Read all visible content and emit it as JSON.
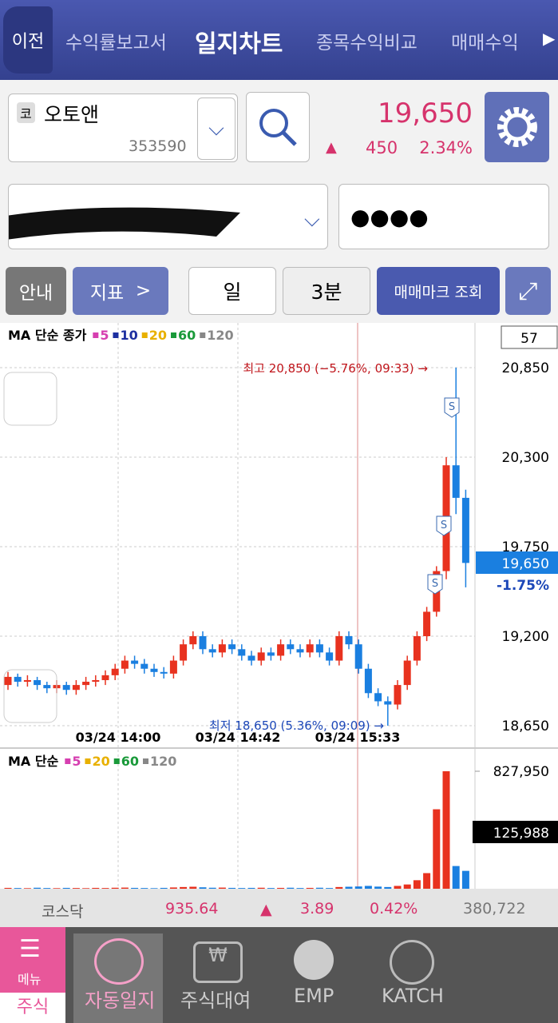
{
  "header": {
    "back": "이전",
    "tabs": [
      "수익률보고서",
      "일지차트",
      "종목수익비교",
      "매매수익"
    ]
  },
  "stock": {
    "badge": "코",
    "name": "오토앤",
    "code": "353590",
    "price": "19,650",
    "change": "450",
    "change_pct": "2.34%"
  },
  "account": {
    "password": "●●●●"
  },
  "toolbar": {
    "guide": "안내",
    "indicator": "지표",
    "period": "일",
    "interval": "3분",
    "mark_query": "매매마크 조회"
  },
  "price_chart": {
    "type": "candlestick",
    "legend": "MA 단순 종가",
    "ma": [
      {
        "name": "5",
        "color": "#d63fb0"
      },
      {
        "name": "10",
        "color": "#1d2fa0"
      },
      {
        "name": "20",
        "color": "#e8b000"
      },
      {
        "name": "60",
        "color": "#1a9a3a"
      },
      {
        "name": "120",
        "color": "#888888"
      }
    ],
    "count": "57",
    "high_note": "최고 20,850 (−5.76%, 09:33) →",
    "low_note": "최저 18,650 (5.36%, 09:09) →",
    "current": "19,650",
    "current_pct": "-1.75%",
    "x_labels": [
      "03/24 14:00",
      "03/24 14:42",
      "03/24 15:33"
    ],
    "ylim": [
      18650,
      20850
    ],
    "yticks": [
      {
        "value": 18650,
        "label": "18,650"
      },
      {
        "value": 19200,
        "label": "19,200"
      },
      {
        "value": 19750,
        "label": "19,750"
      },
      {
        "value": 20300,
        "label": "20,300"
      },
      {
        "value": 20850,
        "label": "20,850"
      }
    ],
    "open": [
      18900,
      18950,
      18920,
      18930,
      18900,
      18880,
      18900,
      18870,
      18900,
      18920,
      18930,
      18960,
      19000,
      19050,
      19030,
      19000,
      18980,
      18970,
      19050,
      19150,
      19200,
      19120,
      19100,
      19150,
      19120,
      19080,
      19050,
      19100,
      19080,
      19150,
      19120,
      19100,
      19150,
      19100,
      19050,
      19200,
      19150,
      19000,
      18850,
      18800,
      18780,
      18900,
      19050,
      19200,
      19350,
      19600,
      20250,
      20050
    ],
    "close": [
      18950,
      18920,
      18930,
      18900,
      18880,
      18900,
      18870,
      18900,
      18920,
      18930,
      18960,
      19000,
      19050,
      19030,
      19000,
      18980,
      18970,
      19050,
      19150,
      19200,
      19120,
      19100,
      19150,
      19120,
      19080,
      19050,
      19100,
      19080,
      19150,
      19120,
      19100,
      19150,
      19100,
      19050,
      19200,
      19150,
      19000,
      18850,
      18800,
      18780,
      18900,
      19050,
      19200,
      19350,
      19600,
      20250,
      20050,
      19650
    ],
    "high": [
      18980,
      18970,
      18960,
      18950,
      18920,
      18930,
      18920,
      18930,
      18950,
      18960,
      18990,
      19030,
      19080,
      19080,
      19060,
      19030,
      19010,
      19080,
      19180,
      19230,
      19230,
      19150,
      19180,
      19180,
      19150,
      19110,
      19130,
      19130,
      19180,
      19180,
      19150,
      19180,
      19180,
      19130,
      19230,
      19230,
      19180,
      19030,
      18880,
      18830,
      18930,
      19080,
      19230,
      19380,
      19630,
      20300,
      20850,
      20100
    ],
    "low": [
      18870,
      18890,
      18890,
      18870,
      18850,
      18850,
      18840,
      18840,
      18870,
      18890,
      18900,
      18930,
      18970,
      19000,
      18970,
      18950,
      18940,
      18940,
      19020,
      19120,
      19090,
      19070,
      19070,
      19090,
      19050,
      19020,
      19020,
      19050,
      19050,
      19090,
      19070,
      19070,
      19070,
      19020,
      19020,
      19120,
      18970,
      18820,
      18770,
      18650,
      18750,
      18870,
      19020,
      19170,
      19320,
      19550,
      19950,
      19500
    ]
  },
  "volume_chart": {
    "type": "bar",
    "legend": "MA 단순",
    "ma": [
      {
        "name": "5",
        "color": "#d63fb0"
      },
      {
        "name": "20",
        "color": "#e8b000"
      },
      {
        "name": "60",
        "color": "#1a9a3a"
      },
      {
        "name": "120",
        "color": "#888888"
      }
    ],
    "ylim": [
      0,
      827950
    ],
    "yticks": [
      {
        "value": 827950,
        "label": "827,950"
      }
    ],
    "current": "125,988",
    "values": [
      6000,
      5000,
      4000,
      7000,
      5000,
      4000,
      6000,
      5000,
      4000,
      6000,
      5000,
      7000,
      8000,
      6000,
      5000,
      4000,
      6000,
      9000,
      12000,
      14000,
      10000,
      7000,
      8000,
      6000,
      5000,
      6000,
      7000,
      5000,
      6000,
      7000,
      5000,
      6000,
      7000,
      5000,
      12000,
      14000,
      16000,
      20000,
      15000,
      12000,
      20000,
      30000,
      60000,
      110000,
      560000,
      827950,
      160000,
      125988
    ]
  },
  "market": {
    "index_name": "코스닥",
    "index": "935.64",
    "change": "3.89",
    "change_pct": "0.42%",
    "volume": "380,722"
  },
  "nav": {
    "menu": "메뉴",
    "stock": "주식",
    "items": [
      "자동일지",
      "주식대여",
      "EMP",
      "KATCH"
    ]
  }
}
